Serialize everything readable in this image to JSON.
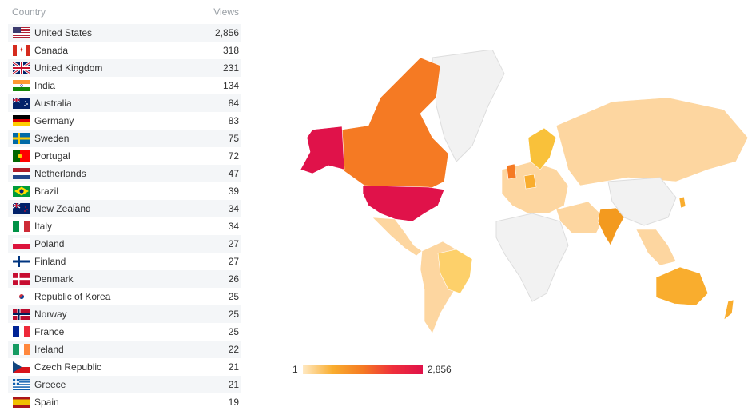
{
  "table": {
    "headers": {
      "country": "Country",
      "views": "Views"
    },
    "rows": [
      {
        "country": "United States",
        "views": "2,856",
        "flag": "us-flag-icon"
      },
      {
        "country": "Canada",
        "views": "318",
        "flag": "ca-flag-icon"
      },
      {
        "country": "United Kingdom",
        "views": "231",
        "flag": "gb-flag-icon"
      },
      {
        "country": "India",
        "views": "134",
        "flag": "in-flag-icon"
      },
      {
        "country": "Australia",
        "views": "84",
        "flag": "au-flag-icon"
      },
      {
        "country": "Germany",
        "views": "83",
        "flag": "de-flag-icon"
      },
      {
        "country": "Sweden",
        "views": "75",
        "flag": "se-flag-icon"
      },
      {
        "country": "Portugal",
        "views": "72",
        "flag": "pt-flag-icon"
      },
      {
        "country": "Netherlands",
        "views": "47",
        "flag": "nl-flag-icon"
      },
      {
        "country": "Brazil",
        "views": "39",
        "flag": "br-flag-icon"
      },
      {
        "country": "New Zealand",
        "views": "34",
        "flag": "nz-flag-icon"
      },
      {
        "country": "Italy",
        "views": "34",
        "flag": "it-flag-icon"
      },
      {
        "country": "Poland",
        "views": "27",
        "flag": "pl-flag-icon"
      },
      {
        "country": "Finland",
        "views": "27",
        "flag": "fi-flag-icon"
      },
      {
        "country": "Denmark",
        "views": "26",
        "flag": "dk-flag-icon"
      },
      {
        "country": "Republic of Korea",
        "views": "25",
        "flag": "kr-flag-icon"
      },
      {
        "country": "Norway",
        "views": "25",
        "flag": "no-flag-icon"
      },
      {
        "country": "France",
        "views": "25",
        "flag": "fr-flag-icon"
      },
      {
        "country": "Ireland",
        "views": "22",
        "flag": "ie-flag-icon"
      },
      {
        "country": "Czech Republic",
        "views": "21",
        "flag": "cz-flag-icon"
      },
      {
        "country": "Greece",
        "views": "21",
        "flag": "gr-flag-icon"
      },
      {
        "country": "Spain",
        "views": "19",
        "flag": "es-flag-icon"
      }
    ]
  },
  "legend": {
    "min": "1",
    "max": "2,856"
  },
  "colors": {
    "high": "#e0124a",
    "upper": "#f57a23",
    "mid": "#f9ad2e",
    "low": "#fdd6a0",
    "none": "#f2f2f2",
    "row_alt": "#f4f6f8"
  }
}
